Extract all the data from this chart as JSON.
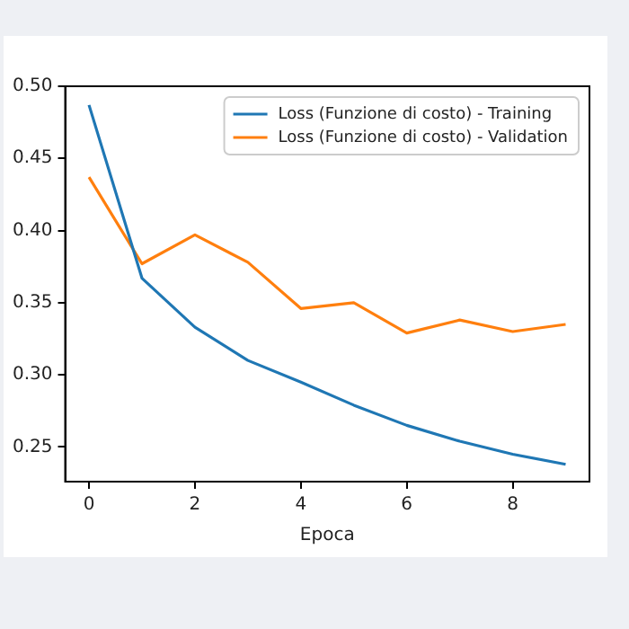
{
  "chart_data": {
    "type": "line",
    "xlabel": "Epoca",
    "x": [
      0,
      1,
      2,
      3,
      4,
      5,
      6,
      7,
      8,
      9
    ],
    "series": [
      {
        "name": "Loss (Funzione di costo) - Training",
        "color": "#1f77b4",
        "values": [
          0.487,
          0.367,
          0.333,
          0.31,
          0.295,
          0.279,
          0.265,
          0.254,
          0.245,
          0.238
        ]
      },
      {
        "name": "Loss (Funzione di costo) - Validation",
        "color": "#ff7f0e",
        "values": [
          0.437,
          0.377,
          0.397,
          0.378,
          0.346,
          0.35,
          0.329,
          0.338,
          0.33,
          0.335
        ]
      }
    ],
    "xlim": [
      -0.45,
      9.45
    ],
    "xticks": [
      0,
      2,
      4,
      6,
      8
    ],
    "ylim": [
      0.226,
      0.5
    ],
    "yticks": [
      {
        "value": 0.25,
        "label": "0.25"
      },
      {
        "value": 0.3,
        "label": "0.30"
      },
      {
        "value": 0.35,
        "label": "0.35"
      },
      {
        "value": 0.4,
        "label": "0.40"
      },
      {
        "value": 0.45,
        "label": "0.45"
      },
      {
        "value": 0.5,
        "label": "0.50"
      }
    ],
    "grid": false,
    "legend": "top right",
    "marker": "none",
    "line_style": "solid"
  }
}
